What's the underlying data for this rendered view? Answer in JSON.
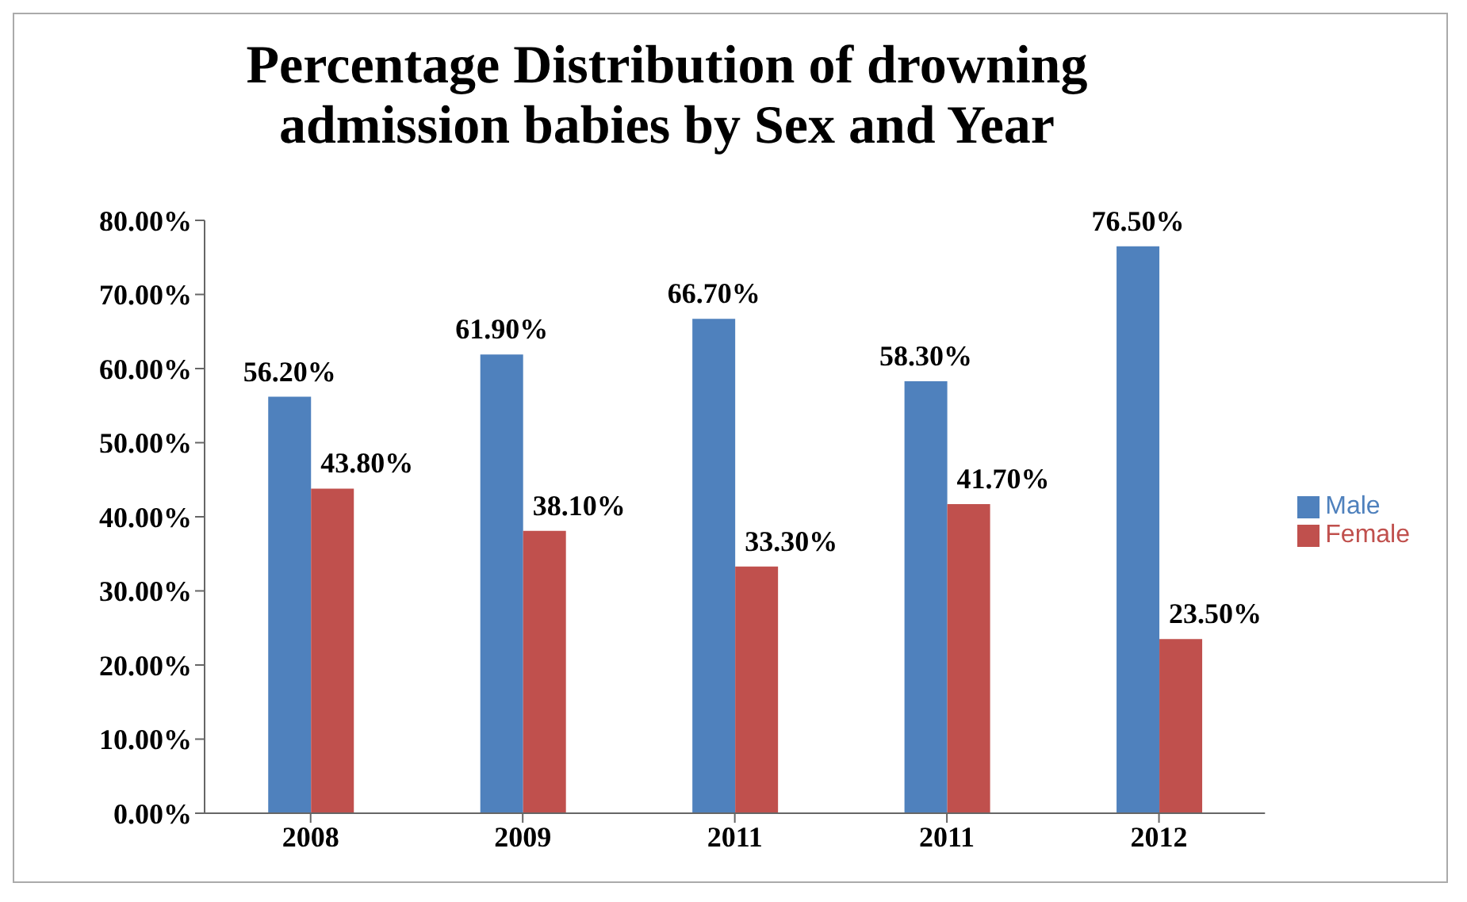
{
  "chart_data": {
    "type": "bar",
    "title": "Percentage Distribution of drowning admission babies by Sex and Year",
    "categories": [
      "2008",
      "2009",
      "2011",
      "2011",
      "2012"
    ],
    "series": [
      {
        "name": "Male",
        "color": "#4f81bd",
        "values": [
          56.2,
          61.9,
          66.7,
          58.3,
          76.5
        ],
        "value_labels": [
          "56.20%",
          "61.90%",
          "66.70%",
          "58.30%",
          "76.50%"
        ]
      },
      {
        "name": "Female",
        "color": "#c0504d",
        "values": [
          43.8,
          38.1,
          33.3,
          41.7,
          23.5
        ],
        "value_labels": [
          "43.80%",
          "38.10%",
          "33.30%",
          "41.70%",
          "23.50%"
        ]
      }
    ],
    "ylim": [
      0,
      80
    ],
    "yticks": [
      {
        "value": 0,
        "label": "0.00%"
      },
      {
        "value": 10,
        "label": "10.00%"
      },
      {
        "value": 20,
        "label": "20.00%"
      },
      {
        "value": 30,
        "label": "30.00%"
      },
      {
        "value": 40,
        "label": "40.00%"
      },
      {
        "value": 50,
        "label": "50.00%"
      },
      {
        "value": 60,
        "label": "60.00%"
      },
      {
        "value": 70,
        "label": "70.00%"
      },
      {
        "value": 80,
        "label": "80.00%"
      }
    ],
    "grid": false,
    "legend": "right"
  }
}
